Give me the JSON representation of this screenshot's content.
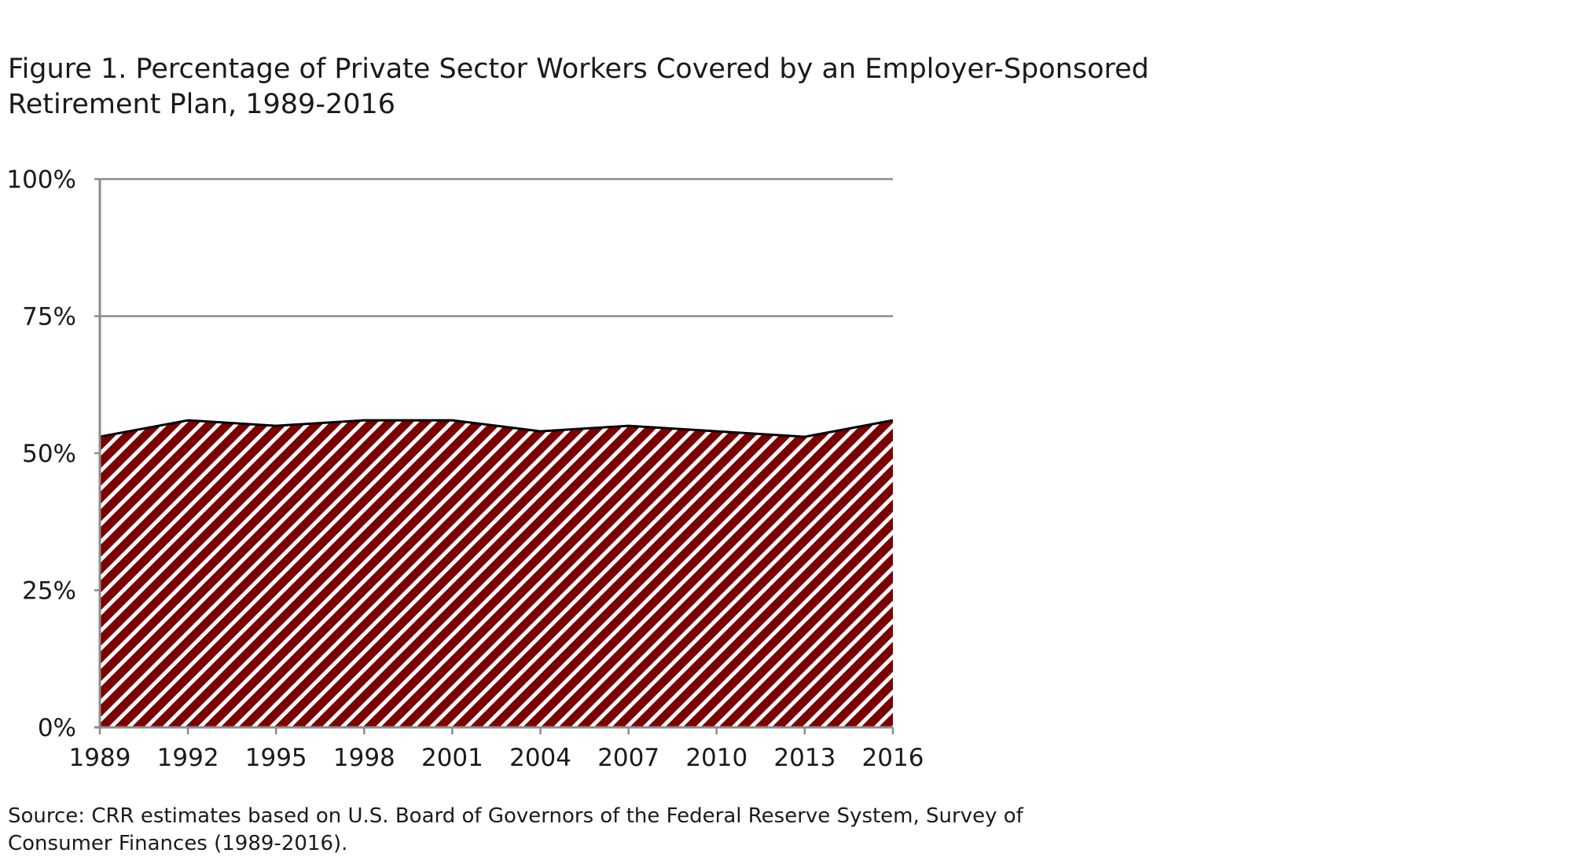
{
  "title_lines": [
    "Figure 1. Percentage of Private Sector Workers Covered by an Employer-Sponsored",
    "Retirement Plan, 1989-2016"
  ],
  "source_lines": [
    "Source: CRR estimates based on U.S. Board of Governors of the Federal Reserve System, Survey of",
    "Consumer Finances (1989-2016)."
  ],
  "chart_data": {
    "type": "area",
    "title": "Figure 1. Percentage of Private Sector Workers Covered by an Employer-Sponsored Retirement Plan, 1989-2016",
    "x": [
      1989,
      1992,
      1995,
      1998,
      2001,
      2004,
      2007,
      2010,
      2013,
      2016
    ],
    "values": [
      53,
      56,
      55,
      56,
      56,
      54,
      55,
      54,
      53,
      56
    ],
    "xlabel": "",
    "ylabel": "",
    "ylim": [
      0,
      100
    ],
    "y_ticks": [
      "0%",
      "25%",
      "50%",
      "75%",
      "100%"
    ],
    "x_ticks": [
      "1989",
      "1992",
      "1995",
      "1998",
      "2001",
      "2004",
      "2007",
      "2010",
      "2013",
      "2016"
    ],
    "grid": true,
    "legend": "none",
    "fill_pattern": "diagonal-stripes",
    "colors": {
      "fill": "#7b0000",
      "stripe": "#ffffff",
      "line": "#000000",
      "grid": "#8c8c8c"
    }
  }
}
